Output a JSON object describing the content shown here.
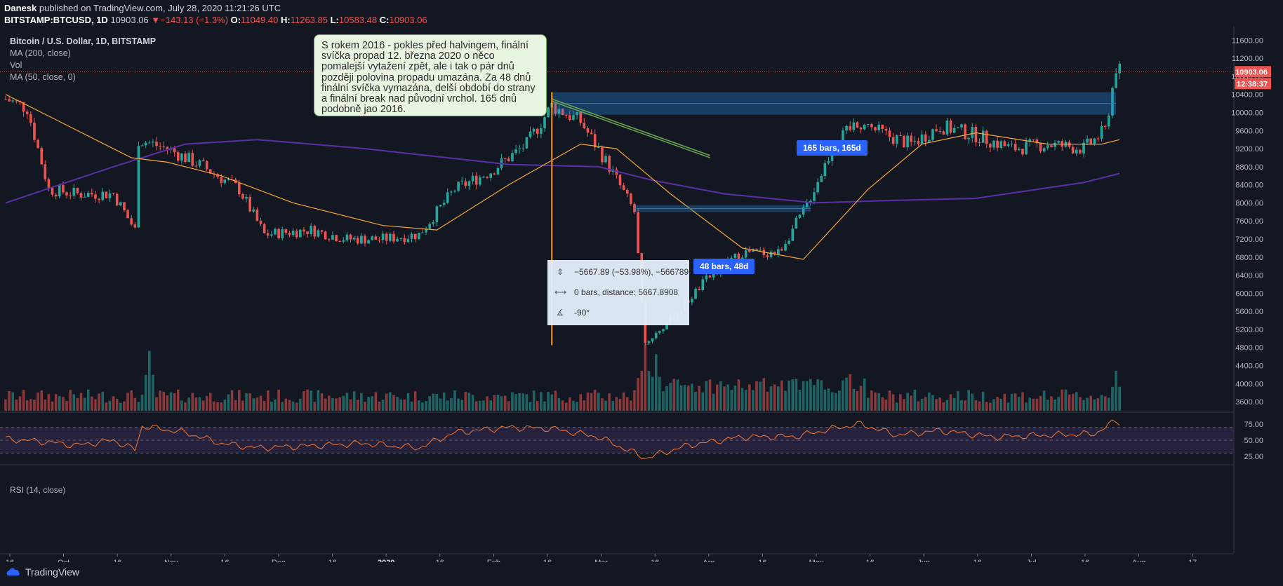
{
  "header": {
    "author": "Danesk",
    "published": "published on TradingView.com, July 28, 2020 11:21:26 UTC",
    "symbol": "BITSTAMP:BTCUSD, 1D",
    "last": "10903.06",
    "change": "−143.13 (−1.3%)",
    "o_label": "O:",
    "o": "11049.40",
    "h_label": "H:",
    "h": "11263.85",
    "l_label": "L:",
    "l": "10583.48",
    "c_label": "C:",
    "c": "10903.06"
  },
  "legend": {
    "title": "Bitcoin / U.S. Dollar, 1D, BITSTAMP",
    "ma200": "MA (200, close)",
    "vol": "Vol",
    "ma50": "MA (50, close, 0)",
    "rsi": "RSI (14, close)"
  },
  "note": "S rokem 2016 - pokles před halvingem, finální svíčka propad 12. března 2020 o něco pomalejší vytažení zpět, ale i tak o pár dnů později polovina propadu umazána. Za 48 dnů finální svíčka vymazána, delší období do strany a finální break nad původní vrchol. 165 dnů podobně jao 2016.",
  "measure": {
    "row1": "−5667.89 (−53.98%), −566789",
    "row2": "0 bars, distance: 5667.8908",
    "row3": "-90°"
  },
  "pills": {
    "p165": "165 bars, 165d",
    "p48": "48 bars, 48d"
  },
  "price_labels": {
    "last": "10903.06",
    "countdown": "12:38:37"
  },
  "footer": {
    "brand": "TradingView"
  },
  "colors": {
    "bg": "#131722",
    "up": "#26a69a",
    "down": "#ef5350",
    "ma200": "#5b2ea6",
    "ma50": "#f7a536",
    "rsi": "#f7752a",
    "annotation": "#6aa84f"
  },
  "chart_data": {
    "type": "candlestick",
    "symbol": "BTCUSD",
    "interval": "1D",
    "price_axis": {
      "ticks": [
        3600,
        4000,
        4400,
        4800,
        5200,
        5600,
        6000,
        6400,
        6800,
        7200,
        7600,
        8000,
        8400,
        8800,
        9200,
        9600,
        10000,
        10400,
        10800,
        11200,
        11600
      ],
      "range": [
        3400,
        11900
      ]
    },
    "rsi_axis": {
      "ticks": [
        "75.00",
        "50.00",
        "25.00"
      ],
      "overbought": 70,
      "oversold": 30
    },
    "time_axis": [
      "16",
      "Oct",
      "16",
      "Nov",
      "16",
      "Dec",
      "16",
      "2020",
      "16",
      "Feb",
      "16",
      "Mar",
      "16",
      "Apr",
      "16",
      "May",
      "16",
      "Jun",
      "16",
      "Jul",
      "16",
      "Aug",
      "17"
    ],
    "anchors": [
      {
        "day": 0,
        "price": 10300
      },
      {
        "day": 6,
        "price": 10100
      },
      {
        "day": 12,
        "price": 8300
      },
      {
        "day": 20,
        "price": 8200
      },
      {
        "day": 30,
        "price": 8200
      },
      {
        "day": 36,
        "price": 7400
      },
      {
        "day": 37,
        "price": 9400
      },
      {
        "day": 45,
        "price": 9200
      },
      {
        "day": 55,
        "price": 8800
      },
      {
        "day": 65,
        "price": 8300
      },
      {
        "day": 72,
        "price": 7300
      },
      {
        "day": 85,
        "price": 7400
      },
      {
        "day": 95,
        "price": 7200
      },
      {
        "day": 105,
        "price": 7200
      },
      {
        "day": 115,
        "price": 7300
      },
      {
        "day": 125,
        "price": 8300
      },
      {
        "day": 135,
        "price": 8700
      },
      {
        "day": 145,
        "price": 9300
      },
      {
        "day": 152,
        "price": 10150
      },
      {
        "day": 160,
        "price": 9800
      },
      {
        "day": 168,
        "price": 8800
      },
      {
        "day": 175,
        "price": 7800
      },
      {
        "day": 178,
        "price": 4900
      },
      {
        "day": 185,
        "price": 5400
      },
      {
        "day": 195,
        "price": 6300
      },
      {
        "day": 205,
        "price": 6900
      },
      {
        "day": 215,
        "price": 6900
      },
      {
        "day": 222,
        "price": 7800
      },
      {
        "day": 230,
        "price": 9200
      },
      {
        "day": 237,
        "price": 9800
      },
      {
        "day": 245,
        "price": 9500
      },
      {
        "day": 252,
        "price": 9300
      },
      {
        "day": 260,
        "price": 9700
      },
      {
        "day": 270,
        "price": 9500
      },
      {
        "day": 280,
        "price": 9200
      },
      {
        "day": 290,
        "price": 9300
      },
      {
        "day": 300,
        "price": 9200
      },
      {
        "day": 306,
        "price": 9600
      },
      {
        "day": 309,
        "price": 11000
      },
      {
        "day": 310,
        "price": 10903
      }
    ],
    "ma200": [
      [
        0,
        8000
      ],
      [
        30,
        8800
      ],
      [
        50,
        9300
      ],
      [
        70,
        9400
      ],
      [
        100,
        9200
      ],
      [
        140,
        8850
      ],
      [
        165,
        8800
      ],
      [
        180,
        8500
      ],
      [
        200,
        8200
      ],
      [
        225,
        8000
      ],
      [
        245,
        8050
      ],
      [
        270,
        8100
      ],
      [
        300,
        8450
      ],
      [
        310,
        8650
      ]
    ],
    "ma50": [
      [
        0,
        10400
      ],
      [
        15,
        9800
      ],
      [
        35,
        9000
      ],
      [
        45,
        8900
      ],
      [
        60,
        8600
      ],
      [
        80,
        8000
      ],
      [
        105,
        7500
      ],
      [
        120,
        7400
      ],
      [
        140,
        8400
      ],
      [
        160,
        9300
      ],
      [
        170,
        9200
      ],
      [
        185,
        8200
      ],
      [
        205,
        7000
      ],
      [
        222,
        6750
      ],
      [
        240,
        8300
      ],
      [
        255,
        9300
      ],
      [
        270,
        9550
      ],
      [
        290,
        9300
      ],
      [
        305,
        9300
      ],
      [
        310,
        9400
      ]
    ],
    "volume_spikes": [
      {
        "day": 40,
        "level": 0.9
      },
      {
        "day": 178,
        "level": 1.0
      },
      {
        "day": 181,
        "level": 0.85
      },
      {
        "day": 235,
        "level": 0.55
      },
      {
        "day": 309,
        "level": 0.6
      }
    ],
    "rsi": [
      [
        0,
        52
      ],
      [
        10,
        48
      ],
      [
        20,
        42
      ],
      [
        30,
        50
      ],
      [
        36,
        35
      ],
      [
        38,
        72
      ],
      [
        50,
        62
      ],
      [
        60,
        45
      ],
      [
        70,
        38
      ],
      [
        80,
        40
      ],
      [
        100,
        45
      ],
      [
        115,
        38
      ],
      [
        125,
        62
      ],
      [
        140,
        70
      ],
      [
        152,
        68
      ],
      [
        165,
        55
      ],
      [
        175,
        30
      ],
      [
        178,
        22
      ],
      [
        190,
        42
      ],
      [
        205,
        55
      ],
      [
        220,
        56
      ],
      [
        232,
        70
      ],
      [
        238,
        75
      ],
      [
        248,
        58
      ],
      [
        260,
        65
      ],
      [
        275,
        55
      ],
      [
        290,
        58
      ],
      [
        303,
        60
      ],
      [
        309,
        80
      ],
      [
        310,
        78
      ]
    ],
    "annotations": {
      "measure_vertical": {
        "day": 152,
        "from": 4850,
        "to": 10450
      },
      "box_top": {
        "from_day": 152,
        "to_day": 309,
        "low": 9950,
        "high": 10450
      },
      "box_mid": {
        "from_day": 175,
        "to_day": 224,
        "low": 7800,
        "high": 7950
      },
      "trend_lines": [
        [
          152,
          10250,
          196,
          9000
        ],
        [
          152,
          10300,
          196,
          9050
        ]
      ]
    }
  }
}
